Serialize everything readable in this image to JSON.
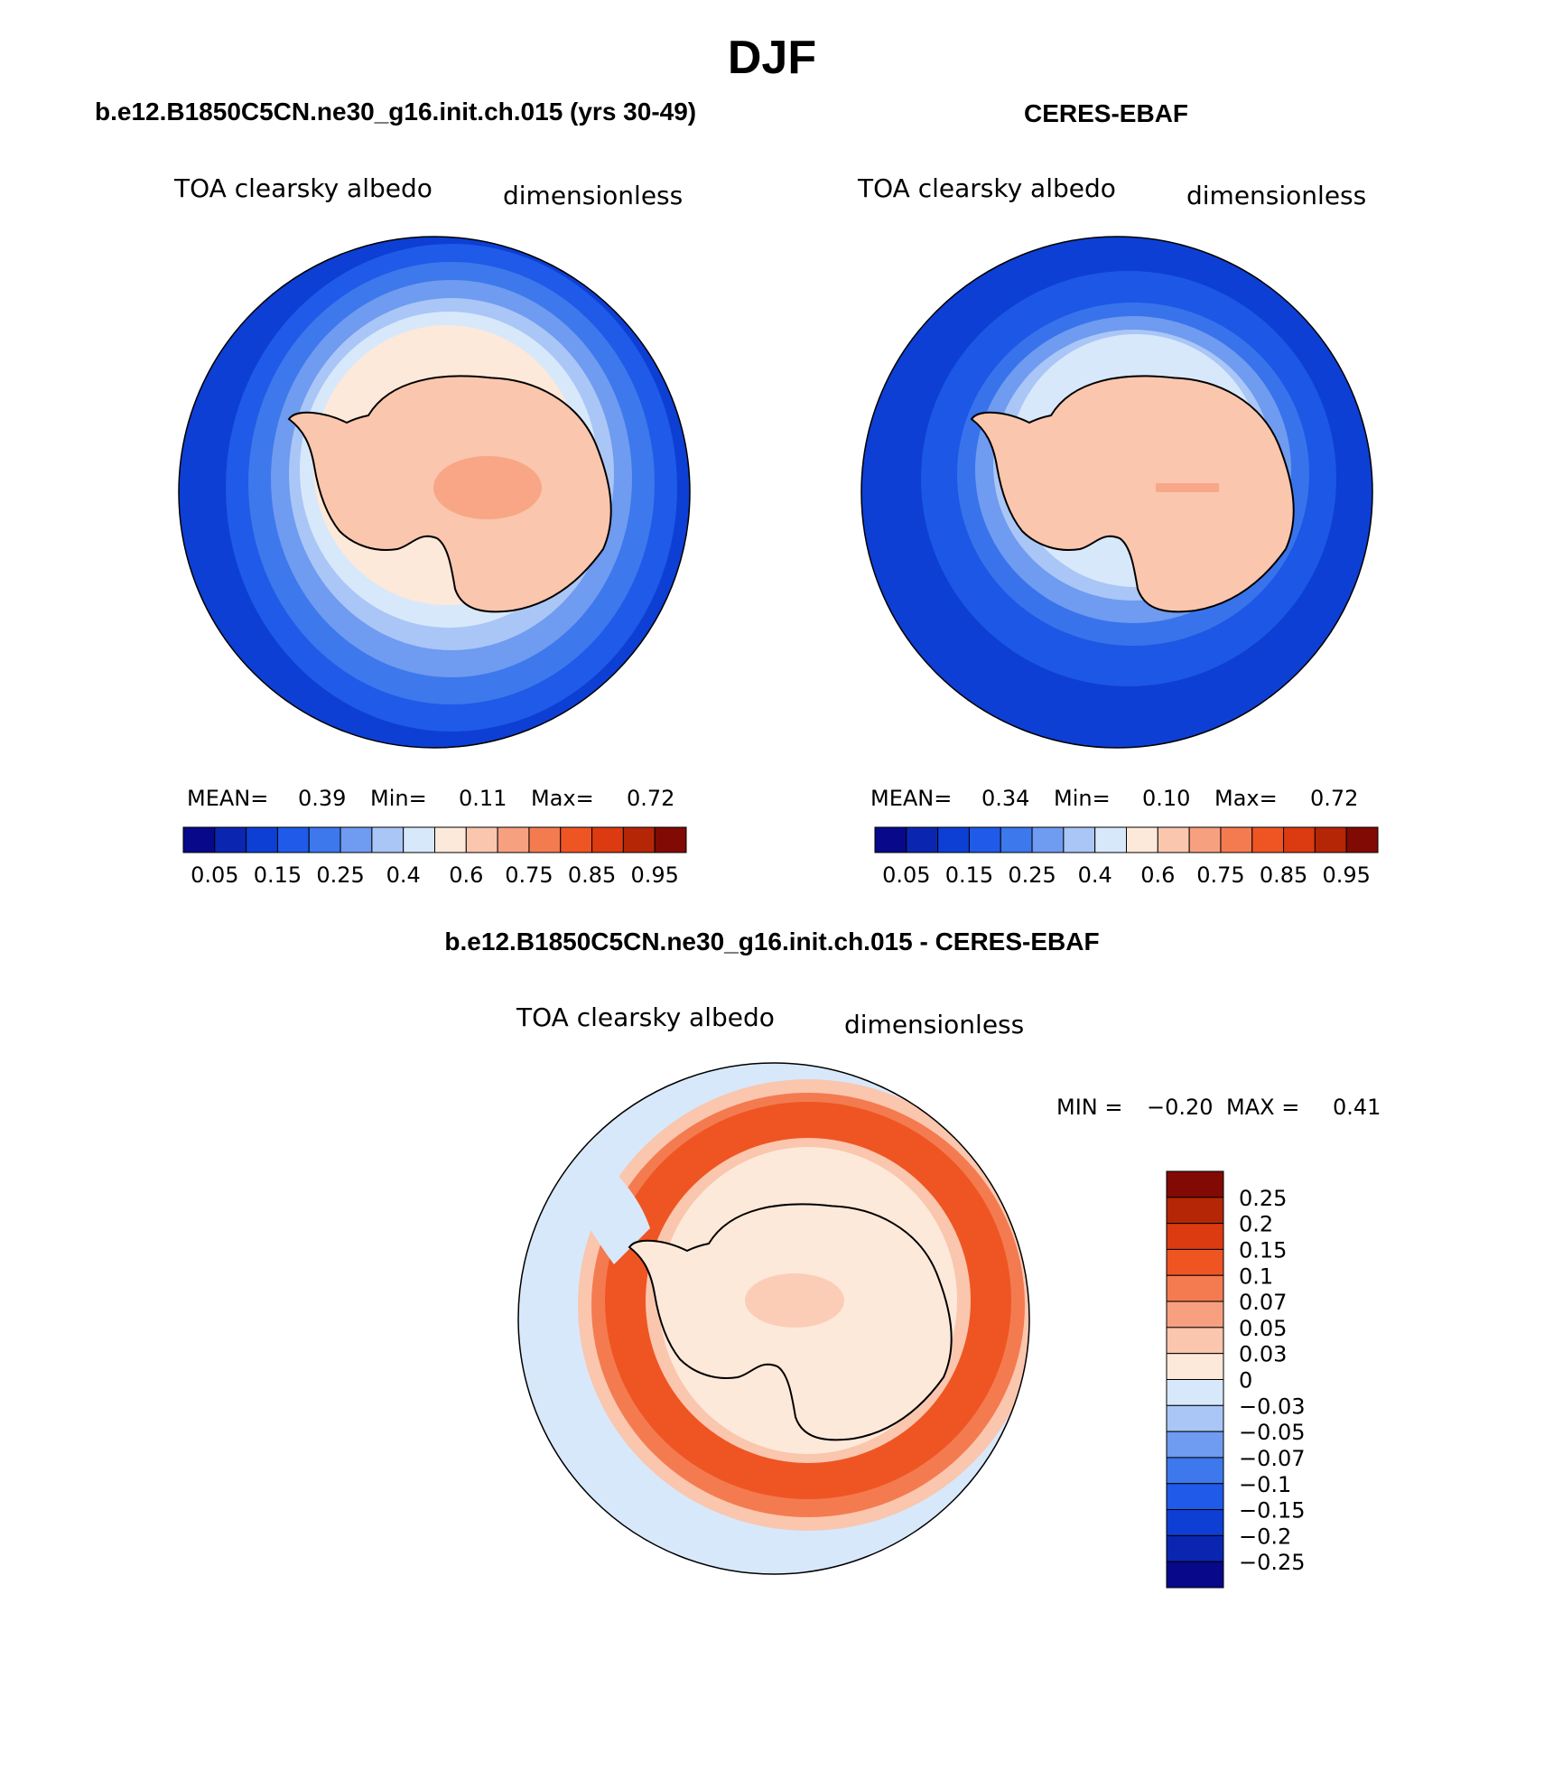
{
  "title": "DJF",
  "panels": [
    {
      "heading": "b.e12.B1850C5CN.ne30_g16.init.ch.015 (yrs 30-49)",
      "var_label": "TOA clearsky albedo",
      "units": "dimensionless",
      "stats": {
        "mean_label": "MEAN=",
        "mean": "0.39",
        "min_label": "Min=",
        "min": "0.11",
        "max_label": "Max=",
        "max": "0.72"
      }
    },
    {
      "heading": "CERES-EBAF",
      "var_label": "TOA clearsky albedo",
      "units": "dimensionless",
      "stats": {
        "mean_label": "MEAN=",
        "mean": "0.34",
        "min_label": "Min=",
        "min": "0.10",
        "max_label": "Max=",
        "max": "0.72"
      }
    }
  ],
  "diff_panel": {
    "heading": "b.e12.B1850C5CN.ne30_g16.init.ch.015 - CERES-EBAF",
    "var_label": "TOA clearsky albedo",
    "units": "dimensionless",
    "min_label": "MIN =",
    "min": "−0.20",
    "max_label": "MAX =",
    "max": "0.41"
  },
  "colorbar_abs": {
    "colors": [
      "#08088a",
      "#0a26b0",
      "#0d3fd4",
      "#1f5ae8",
      "#3d78ec",
      "#6f9bf0",
      "#a9c6f7",
      "#d8e8fb",
      "#fde9d9",
      "#fac6ae",
      "#f7a07f",
      "#f47b50",
      "#ef5523",
      "#dc3a10",
      "#b52606",
      "#820a04"
    ],
    "tick_labels": [
      "0.05",
      "0.15",
      "0.25",
      "0.4",
      "0.6",
      "0.75",
      "0.85",
      "0.95"
    ]
  },
  "colorbar_diff": {
    "colors": [
      "#820a04",
      "#b52606",
      "#dc3a10",
      "#ef5523",
      "#f47b50",
      "#f7a07f",
      "#fac6ae",
      "#fde9d9",
      "#d8e8fb",
      "#a9c6f7",
      "#6f9bf0",
      "#3d78ec",
      "#1f5ae8",
      "#0d3fd4",
      "#0a26b0",
      "#08088a"
    ],
    "tick_labels": [
      "0.25",
      "0.2",
      "0.15",
      "0.1",
      "0.07",
      "0.05",
      "0.03",
      "0",
      "−0.03",
      "−0.05",
      "−0.07",
      "−0.1",
      "−0.15",
      "−0.2",
      "−0.25"
    ]
  }
}
